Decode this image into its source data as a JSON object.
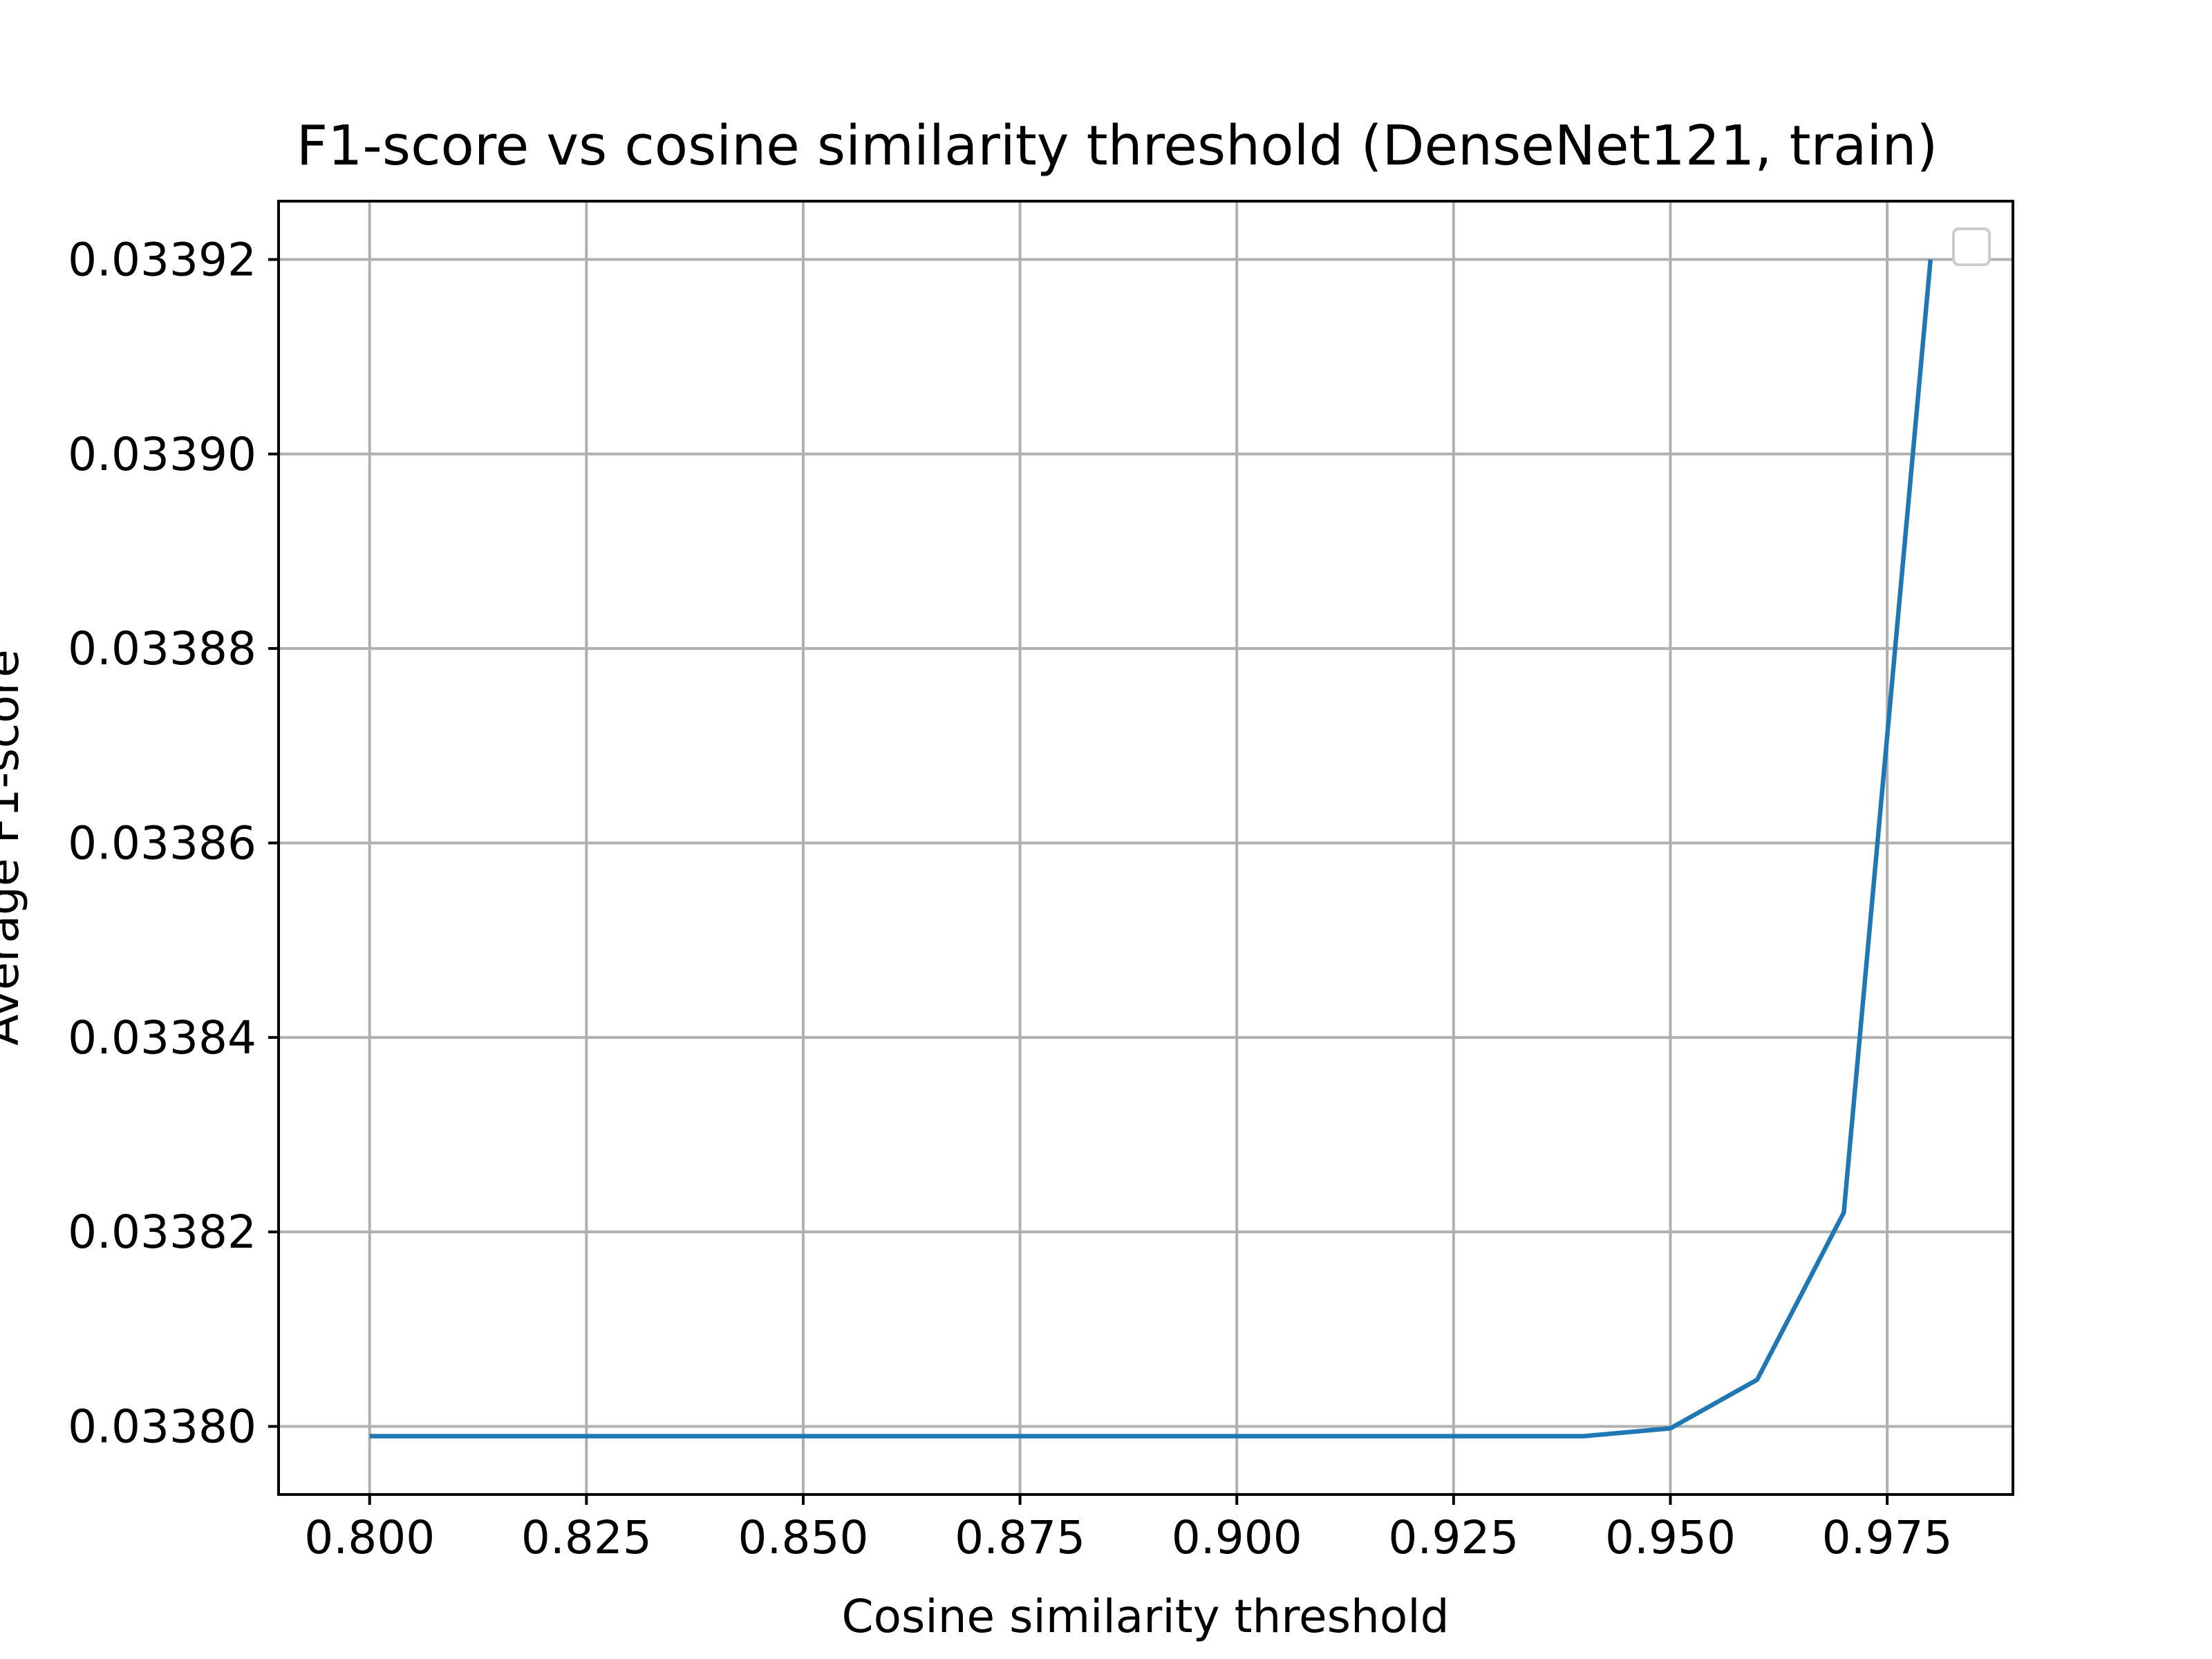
{
  "chart_data": {
    "type": "line",
    "title": "F1-score vs cosine similarity threshold (DenseNet121, train)",
    "xlabel": "Cosine similarity threshold",
    "ylabel": "Average F1-score",
    "xlim": [
      0.7895,
      0.9895
    ],
    "ylim": [
      0.033793,
      0.033926
    ],
    "x_ticks": [
      0.8,
      0.825,
      0.85,
      0.875,
      0.9,
      0.925,
      0.95,
      0.975
    ],
    "x_tick_labels": [
      "0.800",
      "0.825",
      "0.850",
      "0.875",
      "0.900",
      "0.925",
      "0.950",
      "0.975"
    ],
    "y_ticks": [
      0.0338,
      0.03382,
      0.03384,
      0.03386,
      0.03388,
      0.0339,
      0.03392
    ],
    "y_tick_labels": [
      "0.03380",
      "0.03382",
      "0.03384",
      "0.03386",
      "0.03388",
      "0.03390",
      "0.03392"
    ],
    "grid": true,
    "legend": {
      "placement": "top-right",
      "entries": []
    },
    "series": [
      {
        "color": "#1f77b4",
        "x": [
          0.8,
          0.81,
          0.82,
          0.83,
          0.84,
          0.85,
          0.86,
          0.87,
          0.88,
          0.89,
          0.9,
          0.91,
          0.92,
          0.93,
          0.94,
          0.95,
          0.96,
          0.97,
          0.98
        ],
        "values": [
          0.033799,
          0.033799,
          0.033799,
          0.033799,
          0.033799,
          0.033799,
          0.033799,
          0.033799,
          0.033799,
          0.033799,
          0.033799,
          0.033799,
          0.033799,
          0.033799,
          0.033799,
          0.0337998,
          0.0338048,
          0.033822,
          0.03392
        ]
      }
    ]
  }
}
